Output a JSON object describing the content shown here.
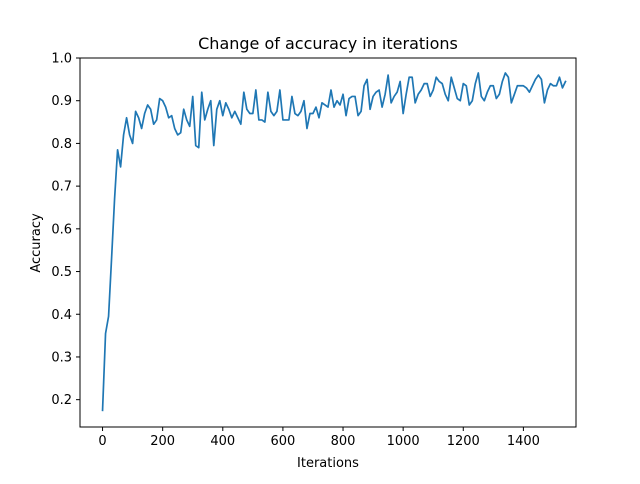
{
  "chart_data": {
    "type": "line",
    "title": "Change of accuracy in iterations",
    "xlabel": "Iterations",
    "ylabel": "Accuracy",
    "xlim": [
      -75,
      1575
    ],
    "ylim": [
      0.136,
      1.0
    ],
    "x_ticks": [
      0,
      200,
      400,
      600,
      800,
      1000,
      1200,
      1400
    ],
    "y_ticks": [
      0.2,
      0.3,
      0.4,
      0.5,
      0.6,
      0.7,
      0.8,
      0.9,
      1.0
    ],
    "x_tick_labels": [
      "0",
      "200",
      "400",
      "600",
      "800",
      "1000",
      "1200",
      "1400"
    ],
    "y_tick_labels": [
      "0.2",
      "0.3",
      "0.4",
      "0.5",
      "0.6",
      "0.7",
      "0.8",
      "0.9",
      "1.0"
    ],
    "grid": false,
    "legend": "none",
    "series": [
      {
        "color": "#1f77b4",
        "x_start": 0,
        "x_step": 10,
        "values": [
          0.175,
          0.355,
          0.395,
          0.53,
          0.67,
          0.785,
          0.745,
          0.82,
          0.86,
          0.82,
          0.8,
          0.875,
          0.86,
          0.835,
          0.87,
          0.89,
          0.88,
          0.845,
          0.855,
          0.905,
          0.9,
          0.885,
          0.86,
          0.865,
          0.835,
          0.82,
          0.825,
          0.88,
          0.855,
          0.84,
          0.91,
          0.795,
          0.79,
          0.92,
          0.855,
          0.88,
          0.9,
          0.795,
          0.88,
          0.9,
          0.865,
          0.895,
          0.88,
          0.86,
          0.875,
          0.86,
          0.845,
          0.92,
          0.88,
          0.87,
          0.87,
          0.925,
          0.855,
          0.855,
          0.85,
          0.92,
          0.875,
          0.865,
          0.875,
          0.925,
          0.855,
          0.855,
          0.855,
          0.91,
          0.87,
          0.865,
          0.875,
          0.9,
          0.835,
          0.87,
          0.87,
          0.885,
          0.86,
          0.895,
          0.89,
          0.885,
          0.925,
          0.885,
          0.9,
          0.89,
          0.915,
          0.865,
          0.905,
          0.91,
          0.91,
          0.865,
          0.875,
          0.935,
          0.95,
          0.88,
          0.91,
          0.92,
          0.925,
          0.885,
          0.915,
          0.96,
          0.895,
          0.91,
          0.92,
          0.945,
          0.87,
          0.915,
          0.955,
          0.955,
          0.895,
          0.915,
          0.925,
          0.94,
          0.94,
          0.91,
          0.925,
          0.955,
          0.945,
          0.94,
          0.915,
          0.9,
          0.955,
          0.93,
          0.905,
          0.9,
          0.94,
          0.935,
          0.89,
          0.9,
          0.94,
          0.965,
          0.91,
          0.9,
          0.92,
          0.935,
          0.935,
          0.905,
          0.915,
          0.945,
          0.965,
          0.955,
          0.895,
          0.915,
          0.935,
          0.935,
          0.935,
          0.93,
          0.92,
          0.935,
          0.95,
          0.96,
          0.95,
          0.895,
          0.925,
          0.94,
          0.935,
          0.935,
          0.955,
          0.93,
          0.945
        ]
      }
    ]
  }
}
